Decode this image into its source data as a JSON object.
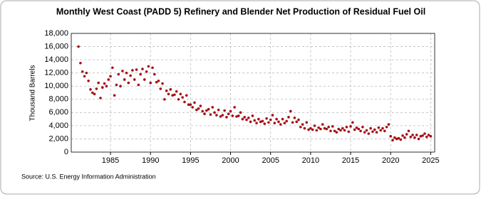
{
  "chart_data": {
    "type": "scatter",
    "title": "Monthly West Coast (PADD 5) Refinery and Blender Net Production of Residual Fuel Oil",
    "y_label": "Thousand Barrels",
    "source": "Source: U.S. Energy Information Administration",
    "color": "#a50f15",
    "grid": true,
    "xlim": [
      1980.1,
      2025.5
    ],
    "ylim": [
      0,
      18000
    ],
    "xticks": [
      1985,
      1990,
      1995,
      2000,
      2005,
      2010,
      2015,
      2020,
      2025
    ],
    "yticks": [
      0,
      {
        "value": 2000,
        "label": "2,000"
      },
      {
        "value": 4000,
        "label": "4,000"
      },
      {
        "value": 6000,
        "label": "6,000"
      },
      {
        "value": 8000,
        "label": "8,000"
      },
      {
        "value": 10000,
        "label": "10,000"
      },
      {
        "value": 12000,
        "label": "12,000"
      },
      {
        "value": 14000,
        "label": "14,000"
      },
      {
        "value": 16000,
        "label": "16,000"
      },
      {
        "value": 18000,
        "label": "18,000"
      }
    ],
    "x": [
      1981,
      1981.25,
      1981.5,
      1981.75,
      1982,
      1982.25,
      1982.5,
      1982.75,
      1983,
      1983.25,
      1983.5,
      1983.75,
      1984,
      1984.25,
      1984.5,
      1984.75,
      1985,
      1985.25,
      1985.5,
      1985.75,
      1986,
      1986.25,
      1986.5,
      1986.75,
      1987,
      1987.25,
      1987.5,
      1987.75,
      1988,
      1988.25,
      1988.5,
      1988.75,
      1989,
      1989.25,
      1989.5,
      1989.75,
      1990,
      1990.25,
      1990.5,
      1990.75,
      1991,
      1991.25,
      1991.5,
      1991.75,
      1992,
      1992.25,
      1992.5,
      1992.75,
      1993,
      1993.25,
      1993.5,
      1993.75,
      1994,
      1994.25,
      1994.5,
      1994.75,
      1995,
      1995.25,
      1995.5,
      1995.75,
      1996,
      1996.25,
      1996.5,
      1996.75,
      1997,
      1997.25,
      1997.5,
      1997.75,
      1998,
      1998.25,
      1998.5,
      1998.75,
      1999,
      1999.25,
      1999.5,
      1999.75,
      2000,
      2000.25,
      2000.5,
      2000.75,
      2001,
      2001.25,
      2001.5,
      2001.75,
      2002,
      2002.25,
      2002.5,
      2002.75,
      2003,
      2003.25,
      2003.5,
      2003.75,
      2004,
      2004.25,
      2004.5,
      2004.75,
      2005,
      2005.25,
      2005.5,
      2005.75,
      2006,
      2006.25,
      2006.5,
      2006.75,
      2007,
      2007.25,
      2007.5,
      2007.75,
      2008,
      2008.25,
      2008.5,
      2008.75,
      2009,
      2009.25,
      2009.5,
      2009.75,
      2010,
      2010.25,
      2010.5,
      2010.75,
      2011,
      2011.25,
      2011.5,
      2011.75,
      2012,
      2012.25,
      2012.5,
      2012.75,
      2013,
      2013.25,
      2013.5,
      2013.75,
      2014,
      2014.25,
      2014.5,
      2014.75,
      2015,
      2015.25,
      2015.5,
      2015.75,
      2016,
      2016.25,
      2016.5,
      2016.75,
      2017,
      2017.25,
      2017.5,
      2017.75,
      2018,
      2018.25,
      2018.5,
      2018.75,
      2019,
      2019.25,
      2019.5,
      2019.75,
      2020,
      2020.25,
      2020.5,
      2020.75,
      2021,
      2021.25,
      2021.5,
      2021.75,
      2022,
      2022.25,
      2022.5,
      2022.75,
      2023,
      2023.25,
      2023.5,
      2023.75,
      2024,
      2024.25,
      2024.5,
      2024.75,
      2025
    ],
    "values": [
      16000,
      13500,
      12200,
      11500,
      12000,
      10800,
      9500,
      9000,
      8800,
      9600,
      10500,
      8200,
      9800,
      10400,
      10000,
      11000,
      11500,
      12800,
      8600,
      10200,
      11800,
      10000,
      12300,
      11000,
      12000,
      10500,
      11600,
      12400,
      11000,
      12500,
      10200,
      11800,
      12600,
      11000,
      12200,
      13000,
      10500,
      12800,
      11800,
      10600,
      10800,
      9600,
      10400,
      8000,
      9300,
      8800,
      9500,
      8600,
      8700,
      9200,
      8000,
      8800,
      8300,
      7600,
      8600,
      7200,
      7200,
      6800,
      7500,
      6400,
      6600,
      7000,
      6200,
      5800,
      6300,
      6500,
      5700,
      6800,
      6000,
      5600,
      6400,
      5400,
      5600,
      6300,
      5300,
      5800,
      6200,
      5500,
      6800,
      5400,
      5500,
      6000,
      5000,
      5300,
      4900,
      5200,
      4600,
      5500,
      4800,
      4400,
      5000,
      4600,
      4700,
      4300,
      5100,
      4500,
      4900,
      5600,
      4400,
      5000,
      4600,
      4200,
      5000,
      4400,
      4700,
      5300,
      6200,
      4500,
      5200,
      4600,
      4900,
      3800,
      4200,
      3600,
      4500,
      3400,
      3600,
      3400,
      4000,
      3300,
      3700,
      3500,
      4200,
      3600,
      3500,
      3800,
      3200,
      3900,
      3200,
      3000,
      3500,
      3300,
      3600,
      3300,
      3800,
      3100,
      3900,
      4500,
      3400,
      3700,
      3500,
      3200,
      3800,
      3000,
      3300,
      2800,
      3600,
      3100,
      3400,
      3000,
      3700,
      3300,
      3600,
      3200,
      3800,
      4200,
      2400,
      1800,
      2200,
      2000,
      2100,
      1900,
      2500,
      2200,
      2700,
      3200,
      2300,
      2600,
      2200,
      2600,
      2000,
      2400,
      2500,
      2800,
      2300,
      2600,
      2400
    ]
  }
}
